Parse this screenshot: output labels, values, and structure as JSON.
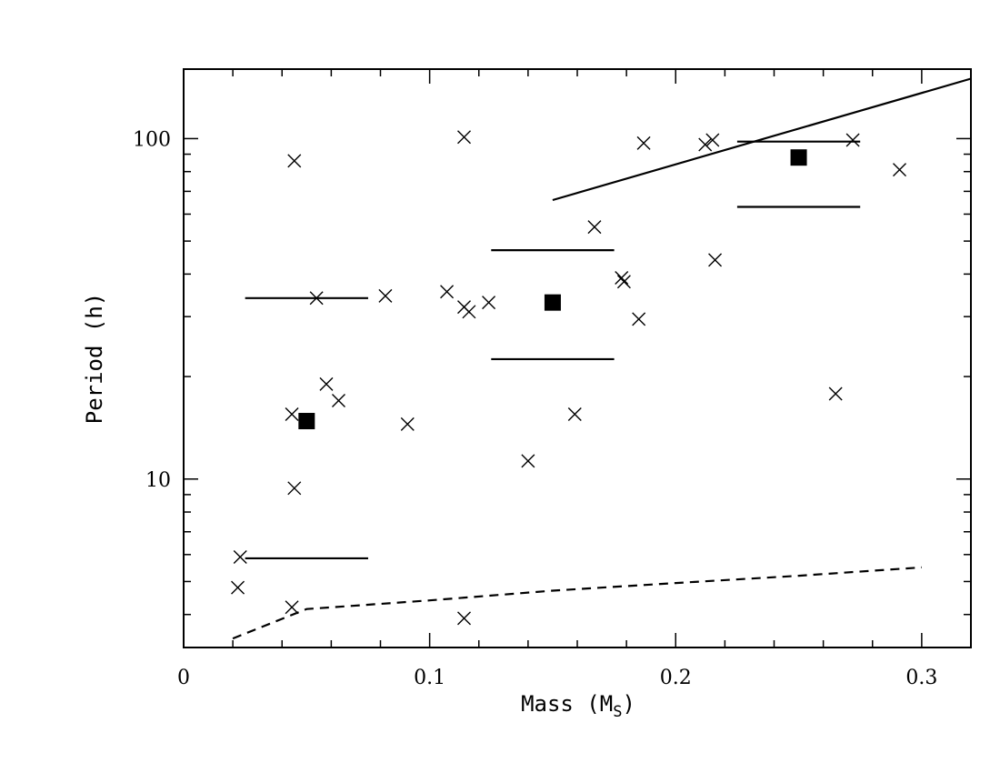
{
  "chart_data": {
    "type": "scatter",
    "title": "",
    "xlabel": "Mass (M",
    "xlabel_subscript": "S",
    "xlabel_suffix": ")",
    "ylabel": "Period (h)",
    "xlim": [
      0,
      0.32
    ],
    "ylim": [
      3.2,
      160
    ],
    "yscale": "log",
    "grid": false,
    "x_ticks": [
      {
        "value": 0,
        "label": "0"
      },
      {
        "value": 0.1,
        "label": "0.1"
      },
      {
        "value": 0.2,
        "label": "0.2"
      },
      {
        "value": 0.3,
        "label": "0.3"
      }
    ],
    "y_ticks": [
      {
        "value": 10,
        "label": "10"
      },
      {
        "value": 100,
        "label": "100"
      }
    ],
    "series": [
      {
        "marker": "cross",
        "points": [
          [
            0.045,
            86
          ],
          [
            0.114,
            101
          ],
          [
            0.187,
            97
          ],
          [
            0.212,
            96
          ],
          [
            0.215,
            99
          ],
          [
            0.272,
            99
          ],
          [
            0.291,
            81
          ],
          [
            0.167,
            55
          ],
          [
            0.216,
            44
          ],
          [
            0.178,
            39
          ],
          [
            0.179,
            38
          ],
          [
            0.054,
            34
          ],
          [
            0.082,
            34.5
          ],
          [
            0.107,
            35.5
          ],
          [
            0.114,
            32
          ],
          [
            0.116,
            31
          ],
          [
            0.124,
            33
          ],
          [
            0.185,
            29.5
          ],
          [
            0.058,
            19
          ],
          [
            0.063,
            17
          ],
          [
            0.044,
            15.5
          ],
          [
            0.091,
            14.5
          ],
          [
            0.159,
            15.5
          ],
          [
            0.265,
            17.8
          ],
          [
            0.14,
            11.3
          ],
          [
            0.045,
            9.4
          ],
          [
            0.023,
            5.9
          ],
          [
            0.022,
            4.8
          ],
          [
            0.044,
            4.2
          ],
          [
            0.114,
            3.9
          ]
        ]
      },
      {
        "marker": "filled-square",
        "points": [
          [
            0.05,
            14.8
          ],
          [
            0.15,
            33
          ],
          [
            0.25,
            88
          ]
        ]
      }
    ],
    "range_bars": [
      {
        "x1": 0.025,
        "x2": 0.075,
        "y": 34
      },
      {
        "x1": 0.025,
        "x2": 0.075,
        "y": 5.85
      },
      {
        "x1": 0.125,
        "x2": 0.175,
        "y": 47
      },
      {
        "x1": 0.125,
        "x2": 0.175,
        "y": 22.5
      },
      {
        "x1": 0.225,
        "x2": 0.275,
        "y": 98
      },
      {
        "x1": 0.225,
        "x2": 0.275,
        "y": 63
      }
    ],
    "solid_line": [
      [
        0.15,
        66
      ],
      [
        0.32,
        150
      ]
    ],
    "dashed_line": [
      [
        0.02,
        3.4
      ],
      [
        0.05,
        4.15
      ],
      [
        0.1,
        4.4
      ],
      [
        0.15,
        4.7
      ],
      [
        0.2,
        4.95
      ],
      [
        0.25,
        5.2
      ],
      [
        0.3,
        5.5
      ]
    ]
  }
}
